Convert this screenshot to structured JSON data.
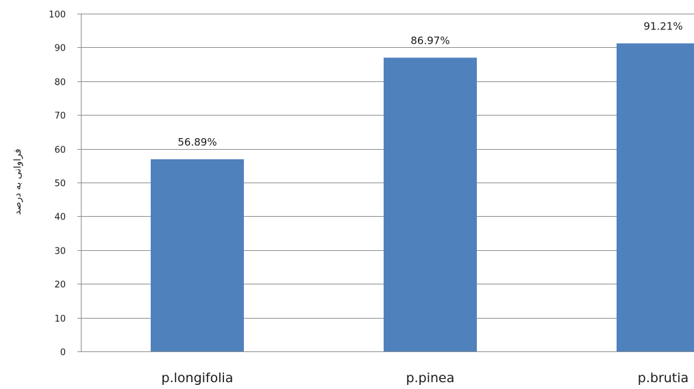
{
  "chart_data": {
    "type": "bar",
    "title": "",
    "xlabel": "",
    "ylabel": "فراوانی به درصد",
    "categories": [
      "p.longifolia",
      "p.pinea",
      "p.brutia"
    ],
    "values": [
      56.89,
      86.97,
      91.21
    ],
    "data_labels": [
      "56.89%",
      "86.97%",
      "91.21%"
    ],
    "ylim": [
      0,
      100
    ],
    "yticks": [
      0,
      10,
      20,
      30,
      40,
      50,
      60,
      70,
      80,
      90,
      100
    ],
    "grid": true,
    "legend": "none",
    "bar_color": "#4f81bd"
  }
}
